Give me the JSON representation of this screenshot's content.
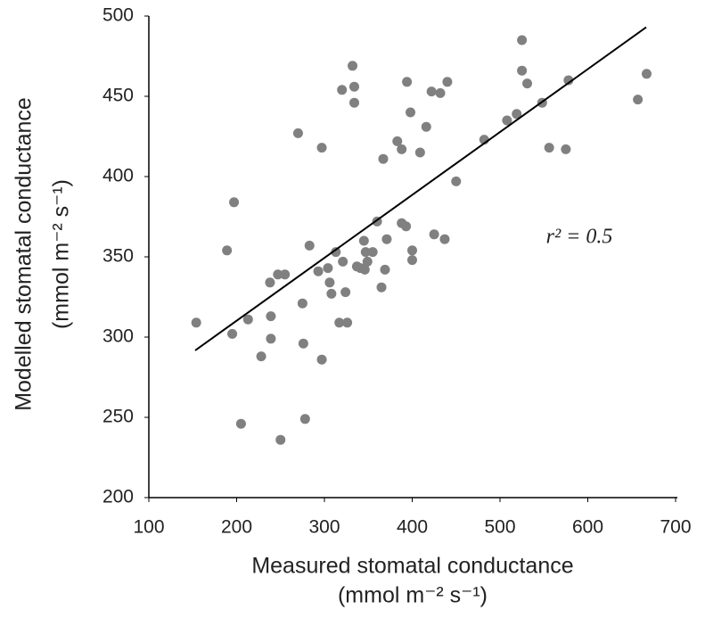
{
  "chart_data": {
    "type": "scatter",
    "x_label": "Measured stomatal conductance",
    "x_label_unit": "(mmol m⁻² s⁻¹)",
    "y_label": "Modelled stomatal conductance",
    "y_label_unit": "(mmol m⁻² s⁻¹)",
    "annotation": "r² = 0.5",
    "color": "#808080",
    "line_color": "#000000",
    "grid": false,
    "xlim": [
      100,
      700
    ],
    "xticks": [
      100,
      200,
      300,
      400,
      500,
      600,
      700
    ],
    "ylim": [
      200,
      500
    ],
    "yticks": [
      200,
      250,
      300,
      350,
      400,
      450,
      500
    ],
    "x": [
      154,
      197,
      189,
      195,
      205,
      213,
      228,
      238,
      239,
      239,
      247,
      250,
      255,
      270,
      275,
      276,
      278,
      283,
      293,
      297,
      297,
      304,
      306,
      308,
      313,
      317,
      320,
      321,
      324,
      326,
      332,
      334,
      334,
      337,
      341,
      345,
      346,
      347,
      349,
      355,
      360,
      365,
      367,
      369,
      371,
      383,
      388,
      388,
      393,
      394,
      398,
      400,
      400,
      409,
      416,
      422,
      425,
      432,
      437,
      440,
      450,
      482,
      508,
      519,
      525,
      525,
      531,
      548,
      556,
      575,
      578,
      657,
      667
    ],
    "y": [
      309,
      384,
      354,
      302,
      246,
      311,
      288,
      334,
      313,
      299,
      339,
      236,
      339,
      427,
      321,
      296,
      249,
      357,
      341,
      418,
      286,
      343,
      334,
      327,
      353,
      309,
      454,
      347,
      328,
      309,
      469,
      456,
      446,
      344,
      343,
      360,
      342,
      353,
      347,
      353,
      372,
      331,
      411,
      342,
      361,
      422,
      417,
      371,
      369,
      459,
      440,
      354,
      348,
      415,
      431,
      453,
      364,
      452,
      361,
      459,
      397,
      423,
      435,
      439,
      485,
      466,
      458,
      446,
      418,
      417,
      460,
      448,
      464
    ],
    "trendline": {
      "x": [
        152.8,
        666.5
      ],
      "y": [
        291.7,
        493
      ]
    }
  }
}
